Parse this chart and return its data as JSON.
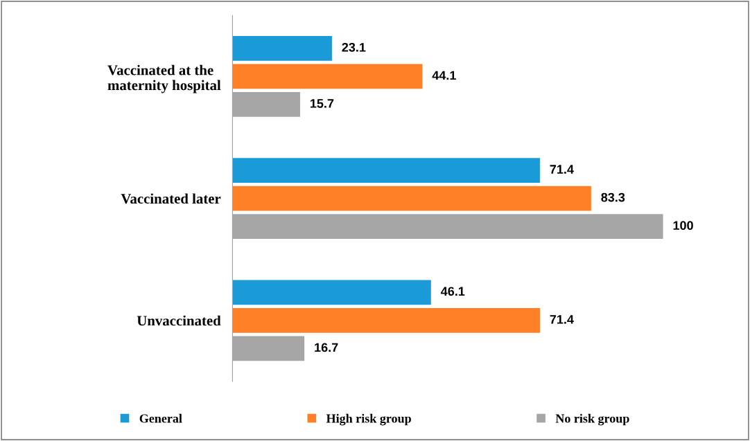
{
  "chart_data": {
    "type": "bar",
    "orientation": "horizontal",
    "categories": [
      "Vaccinated at the\nmaternity hospital",
      "Vaccinated later",
      "Unvaccinated"
    ],
    "series": [
      {
        "name": "General",
        "color": "#1a9ad6",
        "values": [
          23.1,
          71.4,
          46.1
        ]
      },
      {
        "name": "High risk group",
        "color": "#ff7f27",
        "values": [
          44.1,
          83.3,
          71.4
        ]
      },
      {
        "name": "No risk group",
        "color": "#a5a5a5",
        "values": [
          15.7,
          100,
          16.7
        ]
      }
    ],
    "data_labels": true,
    "legend": "bottom",
    "grid": false,
    "tick_labels": "y"
  }
}
